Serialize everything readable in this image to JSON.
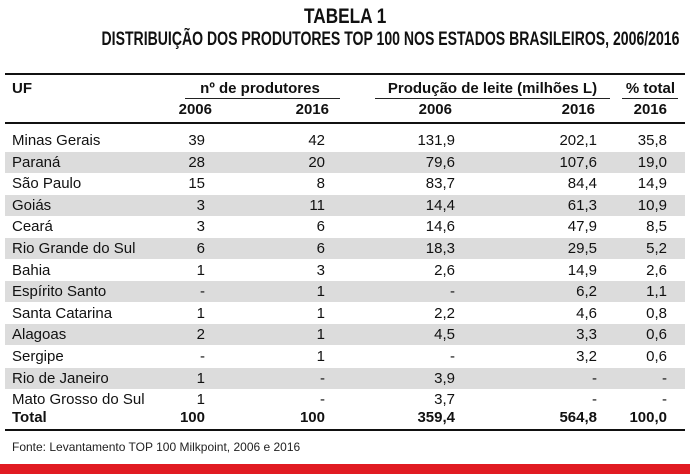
{
  "title": "Tabela 1",
  "subtitle": "Distribuição dos produtores TOP 100 nos estados brasileiros, 2006/2016",
  "headers": {
    "uf": "UF",
    "producers": "nº de produtores",
    "production": "Produção de leite (milhões L)",
    "percent": "% total",
    "y2006": "2006",
    "y2016": "2016"
  },
  "rows": [
    {
      "uf": "Minas Gerais",
      "p2006": "39",
      "p2016": "42",
      "l2006": "131,9",
      "l2016": "202,1",
      "pct": "35,8"
    },
    {
      "uf": "Paraná",
      "p2006": "28",
      "p2016": "20",
      "l2006": "79,6",
      "l2016": "107,6",
      "pct": "19,0"
    },
    {
      "uf": "São Paulo",
      "p2006": "15",
      "p2016": "8",
      "l2006": "83,7",
      "l2016": "84,4",
      "pct": "14,9"
    },
    {
      "uf": "Goiás",
      "p2006": "3",
      "p2016": "11",
      "l2006": "14,4",
      "l2016": "61,3",
      "pct": "10,9"
    },
    {
      "uf": "Ceará",
      "p2006": "3",
      "p2016": "6",
      "l2006": "14,6",
      "l2016": "47,9",
      "pct": "8,5"
    },
    {
      "uf": "Rio Grande do Sul",
      "p2006": "6",
      "p2016": "6",
      "l2006": "18,3",
      "l2016": "29,5",
      "pct": "5,2"
    },
    {
      "uf": "Bahia",
      "p2006": "1",
      "p2016": "3",
      "l2006": "2,6",
      "l2016": "14,9",
      "pct": "2,6"
    },
    {
      "uf": "Espírito Santo",
      "p2006": "-",
      "p2016": "1",
      "l2006": "-",
      "l2016": "6,2",
      "pct": "1,1"
    },
    {
      "uf": "Santa Catarina",
      "p2006": "1",
      "p2016": "1",
      "l2006": "2,2",
      "l2016": "4,6",
      "pct": "0,8"
    },
    {
      "uf": "Alagoas",
      "p2006": "2",
      "p2016": "1",
      "l2006": "4,5",
      "l2016": "3,3",
      "pct": "0,6"
    },
    {
      "uf": "Sergipe",
      "p2006": "-",
      "p2016": "1",
      "l2006": "-",
      "l2016": "3,2",
      "pct": "0,6"
    },
    {
      "uf": "Rio de Janeiro",
      "p2006": "1",
      "p2016": "-",
      "l2006": "3,9",
      "l2016": "-",
      "pct": "-"
    },
    {
      "uf": "Mato Grosso do Sul",
      "p2006": "1",
      "p2016": "-",
      "l2006": "3,7",
      "l2016": "-",
      "pct": "-"
    }
  ],
  "total": {
    "uf": "Total",
    "p2006": "100",
    "p2016": "100",
    "l2006": "359,4",
    "l2016": "564,8",
    "pct": "100,0"
  },
  "source": "Fonte: Levantamento TOP 100 Milkpoint, 2006 e 2016",
  "colors": {
    "stripe": "#dcdcdc",
    "accent": "#e11b22"
  }
}
